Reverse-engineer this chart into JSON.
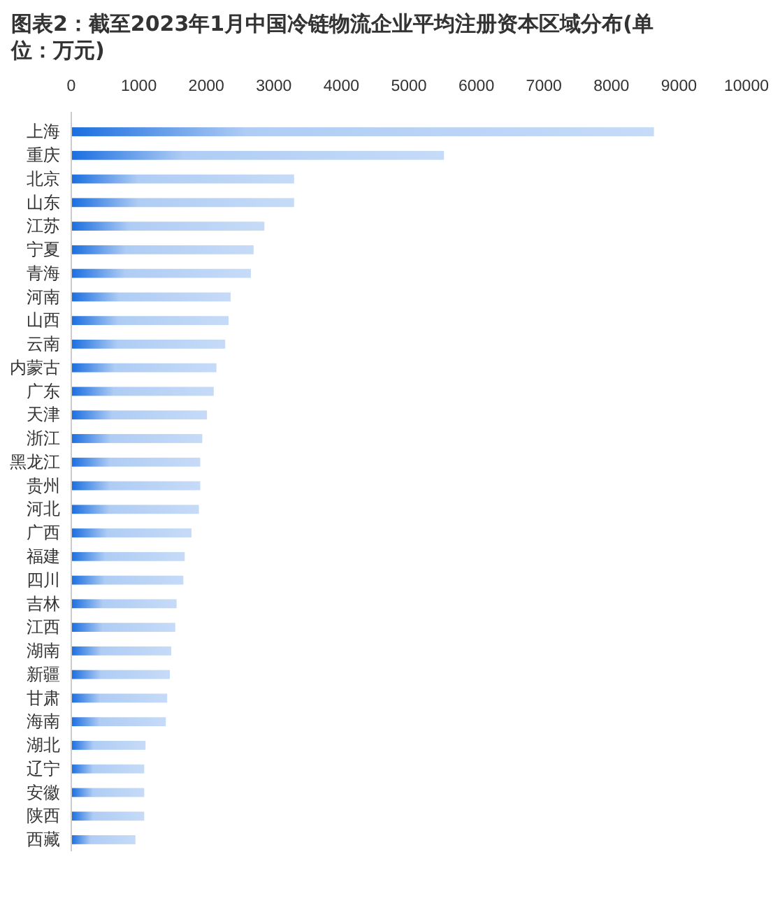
{
  "chart_data": {
    "type": "bar",
    "orientation": "horizontal",
    "title": "图表2：截至2023年1月中国冷链物流企业平均注册资本区域分布(单位：万元)",
    "categories": [
      "上海",
      "重庆",
      "北京",
      "山东",
      "江苏",
      "宁夏",
      "青海",
      "河南",
      "山西",
      "云南",
      "内蒙古",
      "广东",
      "天津",
      "浙江",
      "黑龙江",
      "贵州",
      "河北",
      "广西",
      "福建",
      "四川",
      "吉林",
      "江西",
      "湖南",
      "新疆",
      "甘肃",
      "海南",
      "湖北",
      "辽宁",
      "安徽",
      "陕西",
      "西藏"
    ],
    "values": [
      8630,
      5520,
      3300,
      3300,
      2860,
      2700,
      2660,
      2360,
      2330,
      2280,
      2150,
      2110,
      2010,
      1940,
      1910,
      1910,
      1890,
      1780,
      1680,
      1660,
      1560,
      1540,
      1480,
      1460,
      1420,
      1400,
      1100,
      1080,
      1080,
      1080,
      950
    ],
    "color": "#1a6ee0",
    "xlim": [
      0,
      10000
    ],
    "xticks": [
      0,
      1000,
      2000,
      3000,
      4000,
      5000,
      6000,
      7000,
      8000,
      9000,
      10000
    ],
    "grid": false,
    "legend": false
  }
}
